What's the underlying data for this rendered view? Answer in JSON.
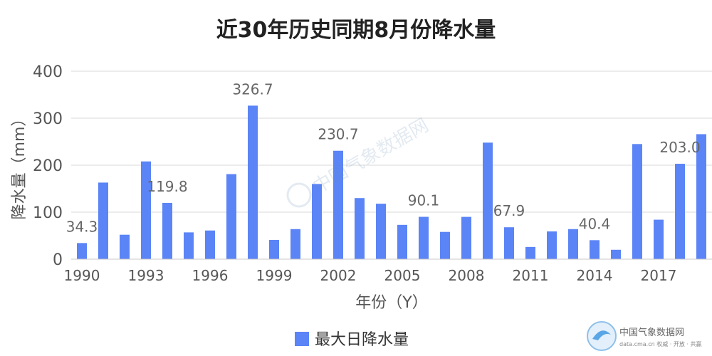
{
  "chart_data": {
    "type": "bar",
    "title": "近30年历史同期8月份降水量",
    "xlabel": "年份（Y）",
    "ylabel": "降水量（mm）",
    "ylim": [
      0,
      400
    ],
    "yticks": [
      0,
      100,
      200,
      300,
      400
    ],
    "grid": true,
    "legend_position": "bottom",
    "bar_color": "#5b84f6",
    "x_tick_labels": [
      "1990",
      "1993",
      "1996",
      "1999",
      "2002",
      "2005",
      "2008",
      "2011",
      "2014",
      "2017"
    ],
    "series": [
      {
        "name": "最大日降水量",
        "x": [
          1990,
          1991,
          1992,
          1993,
          1994,
          1995,
          1996,
          1997,
          1998,
          1999,
          2000,
          2001,
          2002,
          2003,
          2004,
          2005,
          2006,
          2007,
          2008,
          2009,
          2010,
          2011,
          2012,
          2013,
          2014,
          2015,
          2016,
          2017,
          2018,
          2019
        ],
        "values": [
          34.3,
          163,
          52,
          208,
          119.8,
          57,
          61,
          181,
          326.7,
          41,
          64,
          160,
          230.7,
          130,
          118,
          73,
          90.1,
          58,
          90,
          248,
          67.9,
          26,
          59,
          64,
          40.4,
          20,
          245,
          84,
          203.0,
          266
        ]
      }
    ],
    "data_labels": [
      {
        "year": 1990,
        "text": "34.3"
      },
      {
        "year": 1994,
        "text": "119.8"
      },
      {
        "year": 1998,
        "text": "326.7"
      },
      {
        "year": 2002,
        "text": "230.7"
      },
      {
        "year": 2006,
        "text": "90.1"
      },
      {
        "year": 2010,
        "text": "67.9"
      },
      {
        "year": 2014,
        "text": "40.4"
      },
      {
        "year": 2018,
        "text": "203.0"
      }
    ]
  },
  "watermark": {
    "center_text": "中国气象数据网",
    "corner_text": "中国气象数据网",
    "corner_subtext": "data.cma.cn 权威 · 开放 · 共赢"
  }
}
